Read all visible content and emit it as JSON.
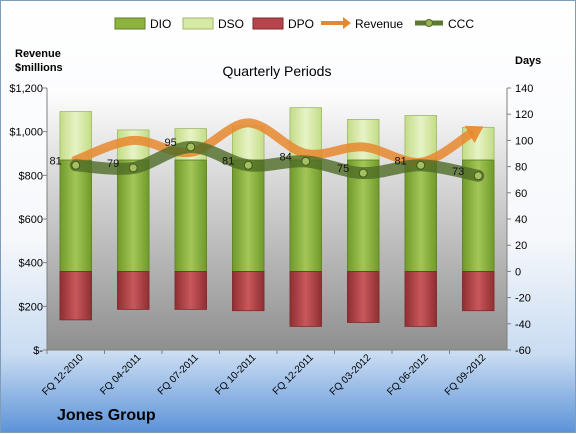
{
  "company": "Jones Group",
  "chart_data": {
    "type": "bar",
    "title": "Quarterly Periods",
    "left_axis_label": "Revenue\n$millions",
    "right_axis_label": "Days",
    "categories": [
      "FQ 12-2010",
      "FQ 04-2011",
      "FQ 07-2011",
      "FQ 10-2011",
      "FQ 12-2011",
      "FQ 03-2012",
      "FQ 06-2012",
      "FQ 09-2012"
    ],
    "left_axis": {
      "min": 0,
      "max": 1200,
      "step": 200,
      "ticks": [
        "$-",
        "$200",
        "$400",
        "$600",
        "$800",
        "$1,000",
        "$1,200"
      ]
    },
    "right_axis": {
      "min": -60,
      "max": 140,
      "step": 20
    },
    "legend_position": "top",
    "series": [
      {
        "name": "DIO",
        "kind": "bar",
        "color": "#8db33e",
        "values": [
          85,
          85,
          85,
          85,
          85,
          85,
          85,
          85
        ]
      },
      {
        "name": "DSO",
        "kind": "bar-stacked-on-DIO",
        "color": "#d7eaa3",
        "values": [
          37,
          23,
          24,
          26,
          40,
          31,
          34,
          25
        ]
      },
      {
        "name": "DPO",
        "kind": "bar-negative",
        "color": "#b5454a",
        "values": [
          -37,
          -29,
          -29,
          -30,
          -42,
          -39,
          -42,
          -30
        ]
      },
      {
        "name": "Revenue",
        "kind": "line",
        "axis": "left",
        "color": "#e8872e",
        "values": [
          870,
          960,
          905,
          1040,
          900,
          930,
          860,
          1010
        ]
      },
      {
        "name": "CCC",
        "kind": "line",
        "axis": "right",
        "color": "#5a7a2e",
        "values": [
          81,
          79,
          95,
          81,
          84,
          75,
          81,
          73
        ]
      }
    ],
    "ccc_labels": [
      "81",
      "79",
      "95",
      "81",
      "84",
      "75",
      "81",
      "73"
    ],
    "grid": false
  }
}
